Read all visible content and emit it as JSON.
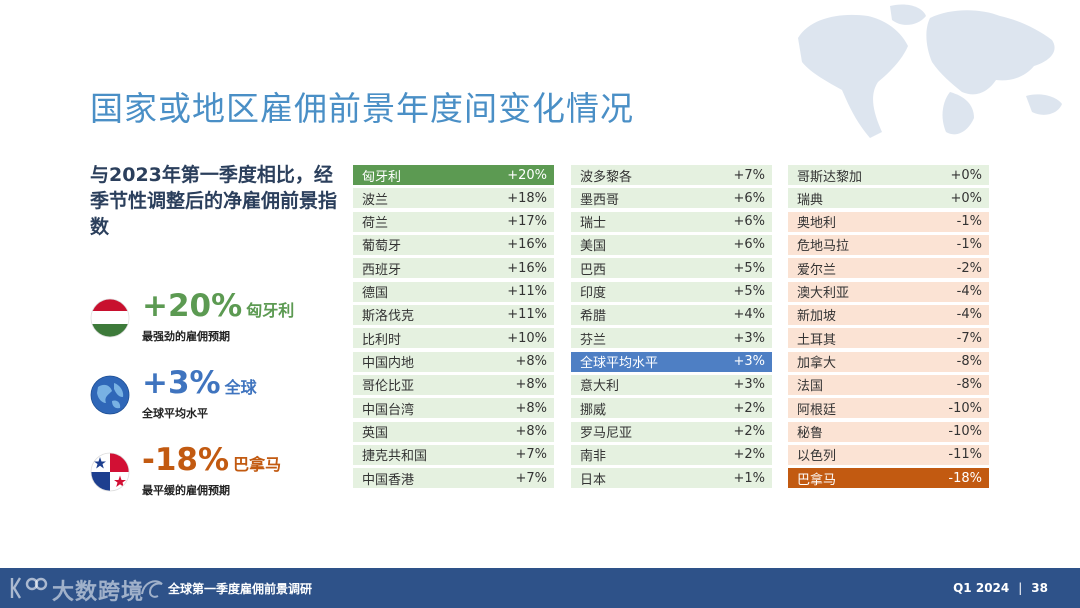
{
  "title": "国家或地区雇佣前景年度间变化情况",
  "subtitle": "与2023年第一季度相比，经季节性调整后的净雇佣前景指数",
  "highlights": [
    {
      "value": "+20%",
      "name": "匈牙利",
      "desc": "最强劲的雇佣预期",
      "icon": "hungary-flag-icon",
      "color": "#5c9a52"
    },
    {
      "value": "+3%",
      "name": "全球",
      "desc": "全球平均水平",
      "icon": "globe-icon",
      "color": "#3f74bf"
    },
    {
      "value": "-18%",
      "name": "巴拿马",
      "desc": "最平缓的雇佣预期",
      "icon": "panama-flag-icon",
      "color": "#c25a11"
    }
  ],
  "columns": [
    [
      {
        "name": "匈牙利",
        "value": "+20%",
        "style": "top"
      },
      {
        "name": "波兰",
        "value": "+18%",
        "style": "pos"
      },
      {
        "name": "荷兰",
        "value": "+17%",
        "style": "pos"
      },
      {
        "name": "葡萄牙",
        "value": "+16%",
        "style": "pos"
      },
      {
        "name": "西班牙",
        "value": "+16%",
        "style": "pos"
      },
      {
        "name": "德国",
        "value": "+11%",
        "style": "pos"
      },
      {
        "name": "斯洛伐克",
        "value": "+11%",
        "style": "pos"
      },
      {
        "name": "比利时",
        "value": "+10%",
        "style": "pos"
      },
      {
        "name": "中国内地",
        "value": "+8%",
        "style": "pos"
      },
      {
        "name": "哥伦比亚",
        "value": "+8%",
        "style": "pos"
      },
      {
        "name": "中国台湾",
        "value": "+8%",
        "style": "pos"
      },
      {
        "name": "英国",
        "value": "+8%",
        "style": "pos"
      },
      {
        "name": "捷克共和国",
        "value": "+7%",
        "style": "pos"
      },
      {
        "name": "中国香港",
        "value": "+7%",
        "style": "pos"
      }
    ],
    [
      {
        "name": "波多黎各",
        "value": "+7%",
        "style": "pos"
      },
      {
        "name": "墨西哥",
        "value": "+6%",
        "style": "pos"
      },
      {
        "name": "瑞士",
        "value": "+6%",
        "style": "pos"
      },
      {
        "name": "美国",
        "value": "+6%",
        "style": "pos"
      },
      {
        "name": "巴西",
        "value": "+5%",
        "style": "pos"
      },
      {
        "name": "印度",
        "value": "+5%",
        "style": "pos"
      },
      {
        "name": "希腊",
        "value": "+4%",
        "style": "pos"
      },
      {
        "name": "芬兰",
        "value": "+3%",
        "style": "pos"
      },
      {
        "name": "全球平均水平",
        "value": "+3%",
        "style": "global"
      },
      {
        "name": "意大利",
        "value": "+3%",
        "style": "pos"
      },
      {
        "name": "挪威",
        "value": "+2%",
        "style": "pos"
      },
      {
        "name": "罗马尼亚",
        "value": "+2%",
        "style": "pos"
      },
      {
        "name": "南非",
        "value": "+2%",
        "style": "pos"
      },
      {
        "name": "日本",
        "value": "+1%",
        "style": "pos"
      }
    ],
    [
      {
        "name": "哥斯达黎加",
        "value": "+0%",
        "style": "pos"
      },
      {
        "name": "瑞典",
        "value": "+0%",
        "style": "pos"
      },
      {
        "name": "奥地利",
        "value": "-1%",
        "style": "neg"
      },
      {
        "name": "危地马拉",
        "value": "-1%",
        "style": "neg"
      },
      {
        "name": "爱尔兰",
        "value": "-2%",
        "style": "neg"
      },
      {
        "name": "澳大利亚",
        "value": "-4%",
        "style": "neg"
      },
      {
        "name": "新加坡",
        "value": "-4%",
        "style": "neg"
      },
      {
        "name": "土耳其",
        "value": "-7%",
        "style": "neg"
      },
      {
        "name": "加拿大",
        "value": "-8%",
        "style": "neg"
      },
      {
        "name": "法国",
        "value": "-8%",
        "style": "neg"
      },
      {
        "name": "阿根廷",
        "value": "-10%",
        "style": "neg"
      },
      {
        "name": "秘鲁",
        "value": "-10%",
        "style": "neg"
      },
      {
        "name": "以色列",
        "value": "-11%",
        "style": "neg"
      },
      {
        "name": "巴拿马",
        "value": "-18%",
        "style": "low"
      }
    ]
  ],
  "footer": {
    "brand": "大数跨境",
    "survey": "全球第一季度雇佣前景调研",
    "period": "Q1 2024",
    "separator": "|",
    "page": "38"
  }
}
